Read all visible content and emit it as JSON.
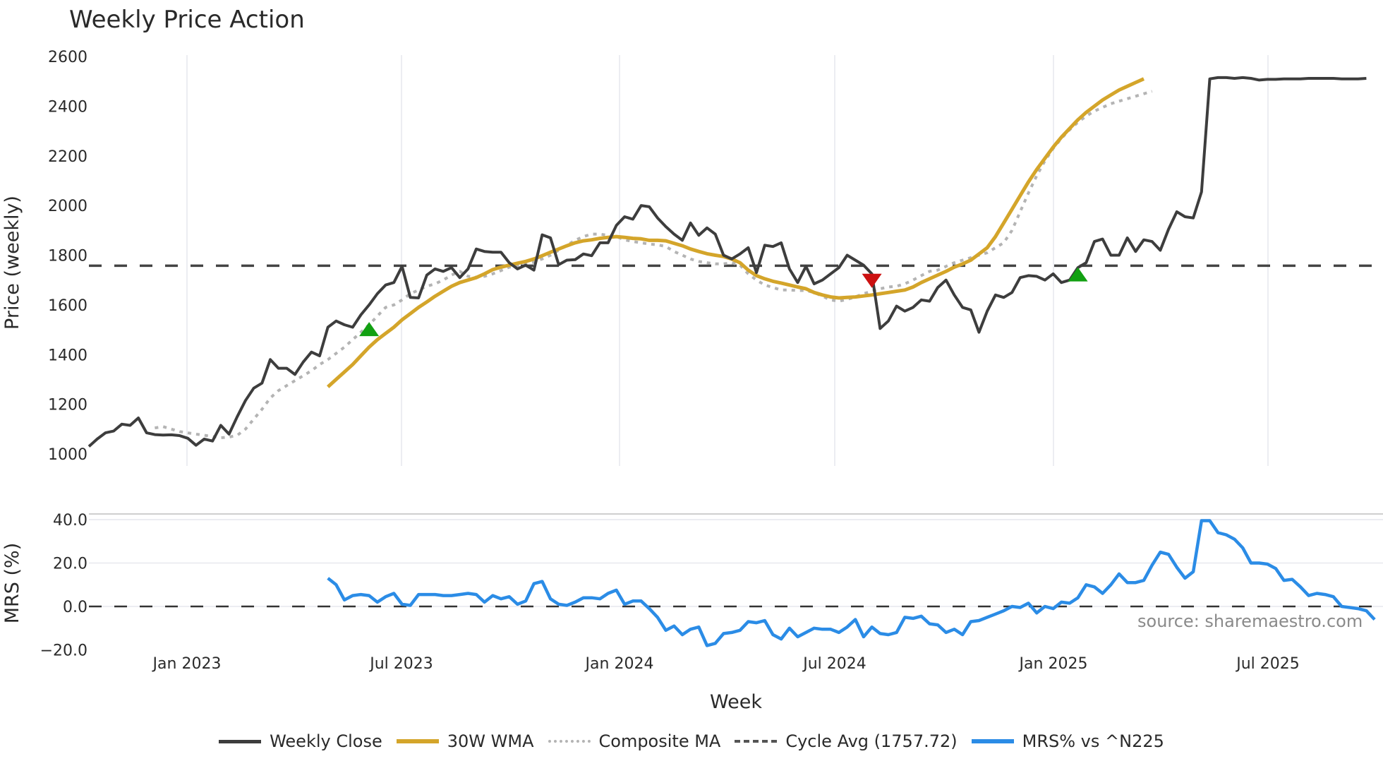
{
  "title": "Weekly Price Action",
  "source_label": "source: sharemaestro.com",
  "colors": {
    "close": "#3d3d3d",
    "wma": "#d4a52a",
    "composite": "#b4b4b4",
    "cycle": "#444444",
    "mrs": "#2b8ce6",
    "buy": "#12a012",
    "sell": "#cc1111",
    "grid": "#ecedf2"
  },
  "legend": [
    {
      "key": "close",
      "label": "Weekly Close",
      "style": "solid"
    },
    {
      "key": "wma",
      "label": "30W WMA",
      "style": "solid"
    },
    {
      "key": "composite",
      "label": "Composite MA",
      "style": "dot"
    },
    {
      "key": "cycle",
      "label": "Cycle Avg (1757.72)",
      "style": "dash"
    },
    {
      "key": "mrs",
      "label": "MRS% vs ^N225",
      "style": "solid"
    }
  ],
  "chart_data": [
    {
      "type": "line",
      "title": "Weekly Price Action",
      "xlabel": "Week",
      "ylabel": "Price (weekly)",
      "ylim": [
        1000,
        2600
      ],
      "yticks": [
        1000,
        1200,
        1400,
        1600,
        1800,
        2000,
        2200,
        2400,
        2600
      ],
      "xticks": [
        "Jan 2023",
        "Jul 2023",
        "Jan 2024",
        "Jul 2024",
        "Jan 2025",
        "Jul 2025"
      ],
      "x_start_week_index": 0,
      "x_description": "weekly points from ~Oct 2022 to ~Oct 2025, Jan 2023 at index 12, Jul 2023 at index 38",
      "series": [
        {
          "name": "Weekly Close",
          "start": 0,
          "values": [
            1030,
            1060,
            1085,
            1092,
            1120,
            1115,
            1145,
            1085,
            1078,
            1076,
            1077,
            1074,
            1063,
            1035,
            1060,
            1052,
            1115,
            1080,
            1150,
            1215,
            1265,
            1285,
            1380,
            1345,
            1345,
            1320,
            1370,
            1410,
            1395,
            1510,
            1535,
            1520,
            1510,
            1560,
            1600,
            1645,
            1680,
            1690,
            1755,
            1630,
            1628,
            1720,
            1745,
            1735,
            1750,
            1710,
            1745,
            1825,
            1815,
            1812,
            1812,
            1770,
            1745,
            1760,
            1740,
            1882,
            1870,
            1762,
            1780,
            1782,
            1805,
            1798,
            1850,
            1850,
            1920,
            1955,
            1945,
            2000,
            1995,
            1950,
            1915,
            1885,
            1860,
            1930,
            1880,
            1910,
            1885,
            1800,
            1785,
            1805,
            1830,
            1730,
            1840,
            1835,
            1850,
            1745,
            1690,
            1755,
            1685,
            1700,
            1725,
            1750,
            1800,
            1780,
            1760,
            1725,
            1505,
            1535,
            1595,
            1575,
            1590,
            1620,
            1615,
            1670,
            1700,
            1640,
            1590,
            1580,
            1490,
            1575,
            1640,
            1630,
            1650,
            1710,
            1718,
            1715,
            1700,
            1725,
            1690,
            1700,
            1750,
            1770,
            1855,
            1865,
            1800,
            1800,
            1870,
            1815,
            1862,
            1855,
            1820,
            1905,
            1975,
            1955,
            1950,
            2055,
            2510,
            2515,
            2515,
            2512,
            2515,
            2512,
            2505,
            2508,
            2508,
            2510,
            2510,
            2510,
            2512,
            2512,
            2512,
            2512,
            2510,
            2510,
            2510,
            2512
          ]
        },
        {
          "name": "30W WMA",
          "start": 29,
          "values": [
            1270,
            1300,
            1330,
            1360,
            1395,
            1430,
            1460,
            1485,
            1510,
            1540,
            1565,
            1590,
            1612,
            1635,
            1655,
            1675,
            1690,
            1700,
            1710,
            1725,
            1742,
            1752,
            1760,
            1768,
            1775,
            1785,
            1798,
            1812,
            1825,
            1838,
            1850,
            1858,
            1862,
            1868,
            1872,
            1875,
            1872,
            1868,
            1866,
            1860,
            1860,
            1858,
            1848,
            1838,
            1825,
            1815,
            1806,
            1800,
            1795,
            1785,
            1770,
            1740,
            1718,
            1705,
            1695,
            1688,
            1680,
            1672,
            1665,
            1650,
            1640,
            1632,
            1628,
            1630,
            1632,
            1636,
            1640,
            1645,
            1650,
            1655,
            1660,
            1672,
            1690,
            1705,
            1720,
            1735,
            1752,
            1765,
            1780,
            1805,
            1830,
            1875,
            1930,
            1985,
            2040,
            2095,
            2145,
            2190,
            2235,
            2275,
            2310,
            2345,
            2375,
            2400,
            2425,
            2445,
            2465,
            2480,
            2495,
            2510
          ]
        },
        {
          "name": "Composite MA",
          "start": 8,
          "values": [
            1105,
            1110,
            1100,
            1090,
            1085,
            1080,
            1075,
            1070,
            1065,
            1068,
            1075,
            1100,
            1140,
            1180,
            1225,
            1255,
            1275,
            1295,
            1315,
            1335,
            1360,
            1380,
            1405,
            1430,
            1460,
            1490,
            1520,
            1555,
            1590,
            1600,
            1620,
            1645,
            1660,
            1675,
            1685,
            1700,
            1720,
            1735,
            1715,
            1712,
            1715,
            1725,
            1738,
            1752,
            1758,
            1765,
            1772,
            1785,
            1800,
            1820,
            1840,
            1860,
            1875,
            1885,
            1885,
            1880,
            1875,
            1862,
            1855,
            1850,
            1845,
            1842,
            1835,
            1815,
            1800,
            1785,
            1775,
            1770,
            1765,
            1765,
            1770,
            1760,
            1725,
            1700,
            1680,
            1670,
            1660,
            1660,
            1658,
            1658,
            1650,
            1635,
            1620,
            1615,
            1622,
            1632,
            1645,
            1655,
            1665,
            1672,
            1675,
            1685,
            1700,
            1718,
            1735,
            1740,
            1755,
            1770,
            1780,
            1790,
            1800,
            1810,
            1830,
            1850,
            1900,
            1975,
            2050,
            2120,
            2180,
            2230,
            2270,
            2305,
            2335,
            2360,
            2380,
            2395,
            2410,
            2420,
            2430,
            2440,
            2450,
            2460
          ]
        },
        {
          "name": "Cycle Avg (1757.72)",
          "type": "hline",
          "value": 1757.72
        }
      ],
      "markers": [
        {
          "type": "buy",
          "shape": "triangle-up",
          "week_index": 34,
          "price": 1500
        },
        {
          "type": "sell",
          "shape": "triangle-down",
          "week_index": 95,
          "price": 1700
        },
        {
          "type": "buy",
          "shape": "triangle-up",
          "week_index": 120,
          "price": 1720
        }
      ]
    },
    {
      "type": "line",
      "title": "",
      "xlabel": "Week",
      "ylabel": "MRS (%)",
      "ylim": [
        -20,
        40
      ],
      "yticks": [
        -20.0,
        0.0,
        20.0,
        40.0
      ],
      "series": [
        {
          "name": "MRS% vs ^N225",
          "start": 29,
          "values": [
            13,
            10,
            3,
            5,
            5.5,
            5,
            2,
            4.5,
            6,
            1,
            0.5,
            5.5,
            5.5,
            5.5,
            5,
            5,
            5.5,
            6,
            5.5,
            2,
            5,
            3.5,
            4.5,
            1,
            2.5,
            10.5,
            11.5,
            3.5,
            1,
            0.5,
            2,
            4,
            4,
            3.5,
            6,
            7.5,
            1,
            2.5,
            2.5,
            -1,
            -5,
            -11,
            -9,
            -13,
            -10.5,
            -9.5,
            -18,
            -17,
            -12.5,
            -12,
            -11,
            -7,
            -7.5,
            -6.5,
            -13,
            -15,
            -10,
            -14,
            -12,
            -10,
            -10.5,
            -10.5,
            -12,
            -9.5,
            -6,
            -14,
            -9.5,
            -12.5,
            -13,
            -12,
            -5,
            -5.5,
            -4.5,
            -8,
            -8.5,
            -12,
            -10.5,
            -13,
            -7,
            -6.5,
            -5,
            -3.5,
            -2,
            0,
            -0.5,
            1.5,
            -3,
            0,
            -1,
            2,
            1.5,
            4,
            10,
            9,
            6,
            10,
            15,
            11,
            11,
            12,
            19,
            25,
            24,
            18,
            13,
            16,
            39.5,
            39.5,
            34,
            33,
            31,
            27,
            20,
            20,
            19.5,
            17.5,
            12,
            12.5,
            9,
            5,
            6,
            5.5,
            4.5,
            0,
            -0.5,
            -1,
            -2,
            -6
          ]
        },
        {
          "name": "zero-line",
          "type": "hline",
          "value": 0
        }
      ],
      "annotations": [
        "source: sharemaestro.com"
      ]
    }
  ],
  "axes": {
    "price": {
      "label": "Price (weekly)",
      "ticks": [
        "1000",
        "1200",
        "1400",
        "1600",
        "1800",
        "2000",
        "2200",
        "2400",
        "2600"
      ]
    },
    "mrs": {
      "label": "MRS (%)",
      "ticks": [
        "40.0",
        "20.0",
        "0.0",
        "−20.0"
      ]
    },
    "x": {
      "label": "Week",
      "ticks": [
        "Jan 2023",
        "Jul 2023",
        "Jan 2024",
        "Jul 2024",
        "Jan 2025",
        "Jul 2025"
      ]
    }
  }
}
